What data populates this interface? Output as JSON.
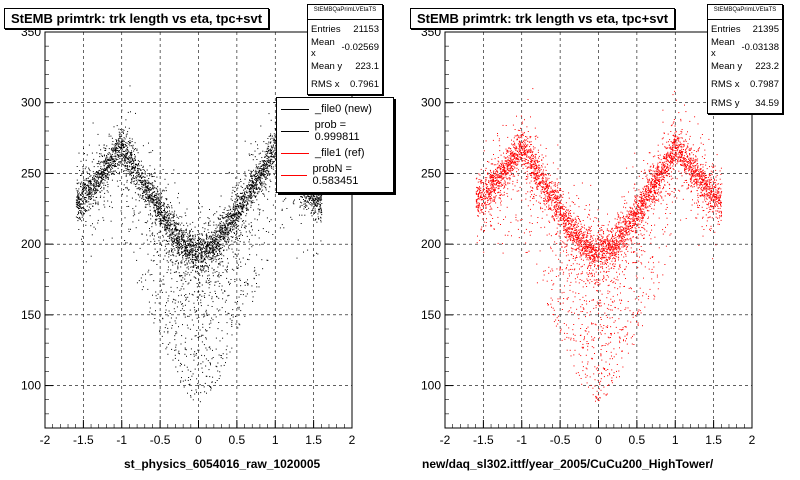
{
  "colors": {
    "ref": "#ff0000",
    "new": "#000000"
  },
  "panels": [
    {
      "id": "left",
      "title": "StEMB primtrk: trk length vs eta, tpc+svt",
      "stats": {
        "name": "StEMBQaPrimLVEtaTS",
        "entries_label": "Entries",
        "entries": "21153",
        "meanx_label": "Mean x",
        "meanx": "-0.02569",
        "meany_label": "Mean y",
        "meany": "223.1",
        "rmsx_label": "RMS x",
        "rmsx": "0.7961"
      },
      "footer": "st_physics_6054016_raw_1020005"
    },
    {
      "id": "right",
      "title": "StEMB primtrk: trk length vs eta, tpc+svt",
      "stats": {
        "name": "StEMBQaPrimLVEtaTS",
        "entries_label": "Entries",
        "entries": "21395",
        "meanx_label": "Mean x",
        "meanx": "-0.03138",
        "meany_label": "Mean y",
        "meany": "223.2",
        "rmsx_label": "RMS x",
        "rmsx": "0.7987",
        "rmsy_label": "RMS y",
        "rmsy": "34.59"
      },
      "footer": "new/daq_sl302.ittf/year_2005/CuCu200_HighTower/"
    }
  ],
  "legend": {
    "items": [
      {
        "label": "_file0 (new)",
        "color": "#000000"
      },
      {
        "label": "prob = 0.999811",
        "color": "#000000"
      },
      {
        "label": "_file1 (ref)",
        "color": "#ff0000"
      },
      {
        "label": "probN = 0.583451",
        "color": "#ff0000"
      }
    ]
  },
  "chart_data": [
    {
      "type": "scatter",
      "title": "StEMB primtrk: trk length vs eta, tpc+svt",
      "xlabel": "",
      "ylabel": "",
      "xlim": [
        -2,
        2
      ],
      "ylim": [
        70,
        350
      ],
      "xticks": [
        "-2",
        "-1.5",
        "-1",
        "-0.5",
        "0",
        "0.5",
        "1",
        "1.5",
        "2"
      ],
      "yticks": [
        "100",
        "150",
        "200",
        "250",
        "300",
        "350"
      ],
      "grid": true,
      "color": "#000000",
      "entries": 21153,
      "ridge": {
        "x": [
          -1.6,
          -1.4,
          -1.2,
          -1.0,
          -0.8,
          -0.6,
          -0.4,
          -0.2,
          0.0,
          0.2,
          0.4,
          0.6,
          0.8,
          1.0,
          1.2,
          1.4,
          1.6
        ],
        "y": [
          230,
          240,
          255,
          270,
          250,
          232,
          215,
          200,
          195,
          200,
          215,
          232,
          250,
          270,
          255,
          240,
          230
        ]
      }
    },
    {
      "type": "scatter",
      "title": "StEMB primtrk: trk length vs eta, tpc+svt",
      "xlabel": "",
      "ylabel": "",
      "xlim": [
        -2,
        2
      ],
      "ylim": [
        70,
        350
      ],
      "xticks": [
        "-2",
        "-1.5",
        "-1",
        "-0.5",
        "0",
        "0.5",
        "1",
        "1.5",
        "2"
      ],
      "yticks": [
        "100",
        "150",
        "200",
        "250",
        "300",
        "350"
      ],
      "grid": true,
      "color": "#ff0000",
      "entries": 21395,
      "ridge": {
        "x": [
          -1.6,
          -1.4,
          -1.2,
          -1.0,
          -0.8,
          -0.6,
          -0.4,
          -0.2,
          0.0,
          0.2,
          0.4,
          0.6,
          0.8,
          1.0,
          1.2,
          1.4,
          1.6
        ],
        "y": [
          230,
          240,
          255,
          270,
          250,
          232,
          215,
          200,
          195,
          200,
          215,
          232,
          250,
          270,
          255,
          240,
          230
        ]
      }
    }
  ]
}
